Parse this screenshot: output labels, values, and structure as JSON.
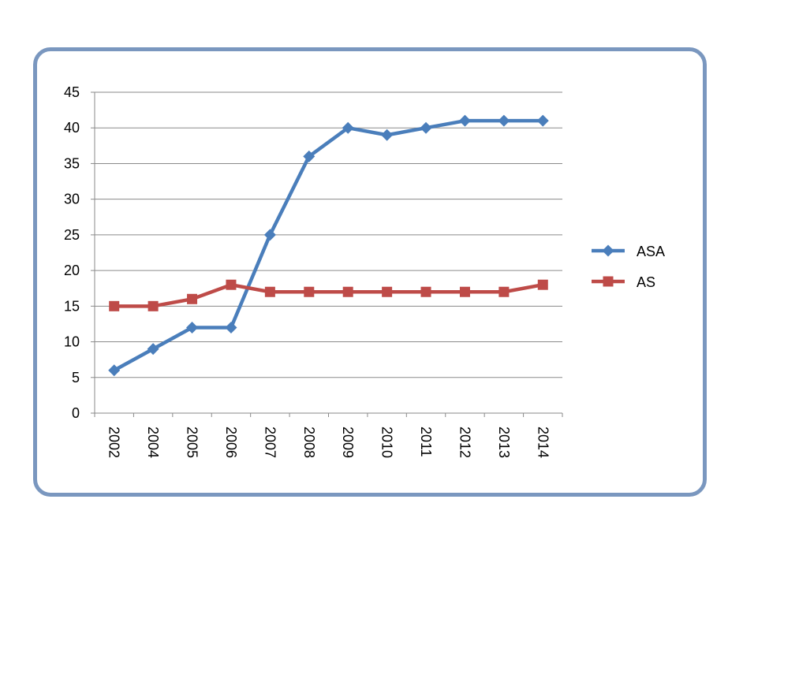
{
  "chart_data": {
    "type": "line",
    "title": "",
    "xlabel": "",
    "ylabel": "",
    "categories": [
      "2002",
      "2004",
      "2005",
      "2006",
      "2007",
      "2008",
      "2009",
      "2010",
      "2011",
      "2012",
      "2013",
      "2014"
    ],
    "ylim": [
      0,
      45
    ],
    "yticks": [
      0,
      5,
      10,
      15,
      20,
      25,
      30,
      35,
      40,
      45
    ],
    "grid": true,
    "legend_position": "right",
    "series": [
      {
        "name": "ASA",
        "color": "#4a7ebb",
        "marker": "diamond",
        "values": [
          6,
          9,
          12,
          12,
          25,
          36,
          40,
          39,
          40,
          41,
          41,
          41
        ]
      },
      {
        "name": "AS",
        "color": "#be4b48",
        "marker": "square",
        "values": [
          15,
          15,
          16,
          18,
          17,
          17,
          17,
          17,
          17,
          17,
          17,
          18
        ]
      }
    ]
  }
}
